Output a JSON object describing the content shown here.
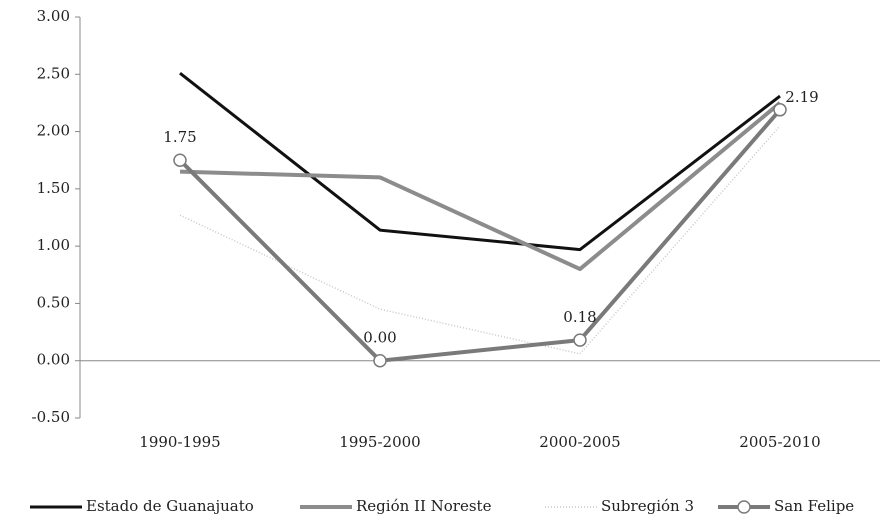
{
  "chart_data": {
    "type": "line",
    "categories": [
      "1990-1995",
      "1995-2000",
      "2000-2005",
      "2005-2010"
    ],
    "series": [
      {
        "name": "Estado de Guanajuato",
        "color": "#111111",
        "values": [
          2.51,
          1.14,
          0.97,
          2.31
        ]
      },
      {
        "name": "Región II Noreste",
        "color": "#8c8c8c",
        "values": [
          1.65,
          1.6,
          0.8,
          2.25
        ]
      },
      {
        "name": "Subregión 3",
        "color": "#c8c8c8",
        "values": [
          1.27,
          0.45,
          0.06,
          2.05
        ]
      },
      {
        "name": "San Felipe",
        "color": "#7a7a7a",
        "values": [
          1.75,
          0.0,
          0.18,
          2.19
        ],
        "value_labels": [
          "1.75",
          "0.00",
          "0.18",
          "2.19"
        ]
      }
    ],
    "ylim": [
      -0.5,
      3.0
    ],
    "yticks": [
      {
        "value": -0.5,
        "label": "-0.50"
      },
      {
        "value": 0,
        "label": "0.00"
      },
      {
        "value": 0.5,
        "label": "0.50"
      },
      {
        "value": 1.0,
        "label": "1.00"
      },
      {
        "value": 1.5,
        "label": "1.50"
      },
      {
        "value": 2.0,
        "label": "2.00"
      },
      {
        "value": 2.5,
        "label": "2.50"
      },
      {
        "value": 3.0,
        "label": "3.00"
      }
    ],
    "grid": false,
    "legend": "bottom"
  }
}
